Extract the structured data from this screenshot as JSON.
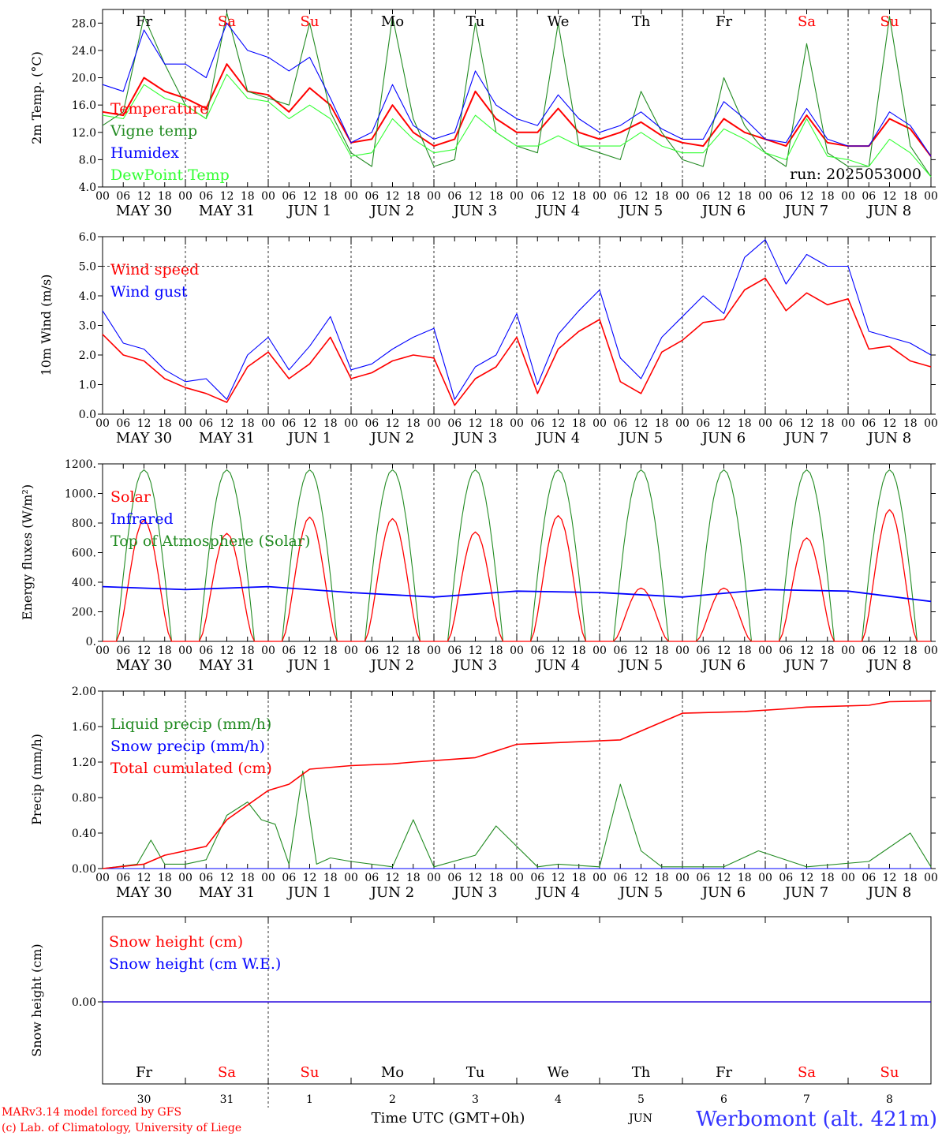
{
  "run_label": "run: 2025053000",
  "days": [
    "Fr",
    "Sa",
    "Su",
    "Mo",
    "Tu",
    "We",
    "Th",
    "Fr",
    "Sa",
    "Su"
  ],
  "weekend_days": [
    1,
    2,
    8,
    9
  ],
  "dates": [
    "MAY 30",
    "MAY 31",
    "JUN  1",
    "JUN  2",
    "JUN  3",
    "JUN  4",
    "JUN  5",
    "JUN  6",
    "JUN  7",
    "JUN  8"
  ],
  "hour_ticks": [
    "00",
    "06",
    "12",
    "18"
  ],
  "last_hour_tick": "00",
  "colors": {
    "red": "#ff0000",
    "green": "#228b22",
    "blue": "#0000ff",
    "light_green": "#33ff33",
    "grid": "#000000"
  },
  "panels": {
    "temp": {
      "ylabel": "2m Temp. (°C)",
      "yticks": [
        "4.0",
        "8.0",
        "12.0",
        "16.0",
        "20.0",
        "24.0",
        "28.0"
      ],
      "ylim": [
        4,
        30
      ],
      "legend": [
        "Temperature",
        "Vigne temp",
        "Humidex",
        "DewPoint Temp"
      ]
    },
    "wind": {
      "ylabel": "10m Wind (m/s)",
      "yticks": [
        "0.0",
        "1.0",
        "2.0",
        "3.0",
        "4.0",
        "5.0",
        "6.0"
      ],
      "ylim": [
        0,
        6
      ],
      "legend": [
        "Wind speed",
        "Wind gust"
      ]
    },
    "energy": {
      "ylabel": "Energy fluxes (W/m²)",
      "yticks": [
        "0.",
        "200.",
        "400.",
        "600.",
        "800.",
        "1000.",
        "1200."
      ],
      "ylim": [
        0,
        1200
      ],
      "legend": [
        "Solar",
        "Infrared",
        "Top of Atmosphere (Solar)"
      ]
    },
    "precip": {
      "ylabel": "Precip (mm/h)",
      "yticks": [
        "0.00",
        "0.40",
        "0.80",
        "1.20",
        "1.60",
        "2.00"
      ],
      "ylim": [
        0,
        2
      ],
      "legend": [
        "Liquid precip (mm/h)",
        "Snow precip (mm/h)",
        "Total cumulated (cm)"
      ]
    },
    "snow": {
      "ylabel": "Snow height (cm)",
      "ytick": "0.00",
      "legend": [
        "Snow height (cm)",
        "Snow height (cm W.E.)"
      ]
    }
  },
  "bottom_axis": {
    "day_numbers": [
      "30",
      "31",
      "1",
      "2",
      "3",
      "4",
      "5",
      "6",
      "7",
      "8"
    ],
    "month": "JUN",
    "xlabel": "Time UTC (GMT+0h)"
  },
  "footer": {
    "model": "MARv3.14 model forced by GFS",
    "credit": "(c) Lab. of Climatology, University of Liege",
    "station": "Werbomont (alt. 421m)"
  },
  "chart_data": [
    {
      "type": "line",
      "x_unit": "hours since 2025-05-30 00 UTC",
      "series": [
        {
          "name": "Temperature",
          "color": "#ff0000",
          "x": [
            0,
            6,
            12,
            18,
            24,
            30,
            36,
            42,
            48,
            54,
            60,
            66,
            72,
            78,
            84,
            90,
            96,
            102,
            108,
            114,
            120,
            126,
            132,
            138,
            144,
            150,
            156,
            162,
            168,
            174,
            180,
            186,
            192,
            198,
            204,
            210,
            216,
            222,
            228,
            234,
            240
          ],
          "y": [
            15,
            14.5,
            20,
            18,
            17,
            15.5,
            22,
            18,
            17.5,
            15,
            18.5,
            16,
            10.5,
            11,
            16,
            12,
            10,
            11,
            18,
            14,
            12,
            12,
            15.5,
            12,
            11,
            12,
            13.5,
            11.5,
            10.5,
            10,
            14,
            12,
            11,
            10,
            14.5,
            10.5,
            10,
            10,
            14,
            12.5,
            8.5
          ]
        },
        {
          "name": "Vigne temp",
          "color": "#228b22",
          "x": [
            0,
            6,
            12,
            18,
            24,
            30,
            36,
            42,
            48,
            54,
            60,
            66,
            72,
            78,
            84,
            90,
            96,
            102,
            108,
            114,
            120,
            126,
            132,
            138,
            144,
            150,
            156,
            162,
            168,
            174,
            180,
            186,
            192,
            198,
            204,
            210,
            216,
            222,
            228,
            234,
            240
          ],
          "y": [
            13,
            15,
            29,
            22,
            16,
            14,
            29.5,
            18,
            17,
            16,
            28,
            15,
            9,
            7,
            29,
            14,
            7,
            8,
            28,
            12,
            10,
            9,
            28,
            10,
            9,
            8,
            18,
            12,
            8,
            7,
            20,
            13,
            9,
            7,
            25,
            9,
            7,
            7,
            29,
            10,
            5.5
          ]
        },
        {
          "name": "Humidex",
          "color": "#0000ff",
          "x": [
            0,
            6,
            12,
            18,
            24,
            30,
            36,
            42,
            48,
            54,
            60,
            66,
            72,
            78,
            84,
            90,
            96,
            102,
            108,
            114,
            120,
            126,
            132,
            138,
            144,
            150,
            156,
            162,
            168,
            174,
            180,
            186,
            192,
            198,
            204,
            210,
            216,
            222,
            228,
            234,
            240
          ],
          "y": [
            19,
            18,
            27,
            22,
            22,
            20,
            28,
            24,
            23,
            21,
            23,
            17,
            10.5,
            12,
            19,
            13,
            11,
            12,
            21,
            16,
            14,
            13,
            17.5,
            14,
            12,
            13,
            15,
            12.5,
            11,
            11,
            16.5,
            14,
            11,
            10.5,
            15.5,
            11,
            10,
            10,
            15,
            13,
            8.5
          ]
        },
        {
          "name": "DewPoint Temp",
          "color": "#33ff33",
          "x": [
            0,
            6,
            12,
            18,
            24,
            30,
            36,
            42,
            48,
            54,
            60,
            66,
            72,
            78,
            84,
            90,
            96,
            102,
            108,
            114,
            120,
            126,
            132,
            138,
            144,
            150,
            156,
            162,
            168,
            174,
            180,
            186,
            192,
            198,
            204,
            210,
            216,
            222,
            228,
            234,
            240
          ],
          "y": [
            14.5,
            14,
            19,
            17,
            16,
            14,
            20.5,
            17,
            16.5,
            14,
            16,
            14,
            8.5,
            9,
            14,
            11,
            9,
            9.5,
            14.5,
            12,
            10,
            10,
            11.5,
            10,
            10,
            10,
            12,
            10,
            9,
            9,
            12.5,
            11,
            9,
            8,
            14,
            8.5,
            8,
            7,
            11,
            9,
            5.5
          ]
        }
      ],
      "ylim": [
        4,
        30
      ]
    },
    {
      "type": "line",
      "x_unit": "hours since 2025-05-30 00 UTC",
      "series": [
        {
          "name": "Wind speed",
          "color": "#ff0000",
          "x": [
            0,
            6,
            12,
            18,
            24,
            30,
            36,
            42,
            48,
            54,
            60,
            66,
            72,
            78,
            84,
            90,
            96,
            102,
            108,
            114,
            120,
            126,
            132,
            138,
            144,
            150,
            156,
            162,
            168,
            174,
            180,
            186,
            192,
            198,
            204,
            210,
            216,
            222,
            228,
            234,
            240
          ],
          "y": [
            2.7,
            2,
            1.8,
            1.2,
            0.9,
            0.7,
            0.4,
            1.6,
            2.1,
            1.2,
            1.7,
            2.6,
            1.2,
            1.4,
            1.8,
            2,
            1.9,
            0.3,
            1.2,
            1.6,
            2.6,
            0.7,
            2.2,
            2.8,
            3.2,
            1.1,
            0.7,
            2.1,
            2.5,
            3.1,
            3.2,
            4.2,
            4.6,
            3.5,
            4.1,
            3.7,
            3.9,
            2.2,
            2.3,
            1.8,
            1.6
          ]
        },
        {
          "name": "Wind gust",
          "color": "#0000ff",
          "x": [
            0,
            6,
            12,
            18,
            24,
            30,
            36,
            42,
            48,
            54,
            60,
            66,
            72,
            78,
            84,
            90,
            96,
            102,
            108,
            114,
            120,
            126,
            132,
            138,
            144,
            150,
            156,
            162,
            168,
            174,
            180,
            186,
            192,
            198,
            204,
            210,
            216,
            222,
            228,
            234,
            240
          ],
          "y": [
            3.5,
            2.4,
            2.2,
            1.5,
            1.1,
            1.2,
            0.5,
            2,
            2.6,
            1.5,
            2.3,
            3.3,
            1.5,
            1.7,
            2.2,
            2.6,
            2.9,
            0.5,
            1.6,
            2,
            3.4,
            1,
            2.7,
            3.5,
            4.2,
            1.9,
            1.2,
            2.6,
            3.3,
            4,
            3.4,
            5.3,
            5.9,
            4.4,
            5.4,
            5,
            5,
            2.8,
            2.6,
            2.4,
            2
          ]
        }
      ],
      "ylim": [
        0,
        6
      ],
      "reference_line": 5
    },
    {
      "type": "line",
      "x_unit": "hours since 2025-05-30 00 UTC",
      "series": [
        {
          "name": "Solar",
          "color": "#ff0000",
          "daily_peak_values": [
            820,
            730,
            840,
            830,
            740,
            850,
            360,
            360,
            700,
            890
          ]
        },
        {
          "name": "Infrared",
          "color": "#0000ff",
          "x": [
            0,
            24,
            48,
            72,
            96,
            120,
            144,
            168,
            192,
            216,
            240
          ],
          "y": [
            370,
            350,
            370,
            330,
            300,
            340,
            330,
            300,
            350,
            340,
            270
          ]
        },
        {
          "name": "Top of Atmosphere (Solar)",
          "color": "#228b22",
          "daily_peak_values": [
            1160,
            1160,
            1160,
            1160,
            1160,
            1160,
            1160,
            1160,
            1160,
            1160
          ]
        }
      ],
      "ylim": [
        0,
        1200
      ]
    },
    {
      "type": "line",
      "x_unit": "hours since 2025-05-30 00 UTC",
      "series": [
        {
          "name": "Liquid precip (mm/h)",
          "color": "#228b22",
          "x": [
            0,
            10,
            14,
            18,
            24,
            30,
            36,
            42,
            46,
            50,
            54,
            58,
            62,
            66,
            72,
            84,
            90,
            96,
            108,
            114,
            126,
            132,
            144,
            150,
            156,
            162,
            168,
            180,
            190,
            204,
            222,
            234,
            240
          ],
          "y": [
            0,
            0.05,
            0.32,
            0.05,
            0.05,
            0.1,
            0.6,
            0.75,
            0.55,
            0.5,
            0.05,
            1.1,
            0.05,
            0.12,
            0.08,
            0.02,
            0.55,
            0.02,
            0.15,
            0.48,
            0.02,
            0.05,
            0.02,
            0.95,
            0.2,
            0.02,
            0.02,
            0.02,
            0.2,
            0.02,
            0.08,
            0.4,
            0.02
          ]
        },
        {
          "name": "Snow precip (mm/h)",
          "color": "#0000ff",
          "x": [
            0,
            240
          ],
          "y": [
            0,
            0
          ]
        },
        {
          "name": "Total cumulated (cm)",
          "color": "#ff0000",
          "x": [
            0,
            12,
            18,
            30,
            36,
            48,
            54,
            60,
            72,
            84,
            90,
            108,
            120,
            132,
            150,
            156,
            168,
            186,
            198,
            204,
            222,
            228,
            240
          ],
          "y": [
            0,
            0.05,
            0.15,
            0.25,
            0.55,
            0.88,
            0.95,
            1.12,
            1.16,
            1.18,
            1.2,
            1.25,
            1.4,
            1.42,
            1.45,
            1.55,
            1.75,
            1.77,
            1.8,
            1.82,
            1.84,
            1.88,
            1.89
          ]
        }
      ],
      "ylim": [
        0,
        2
      ]
    },
    {
      "type": "line",
      "x_unit": "hours since 2025-05-30 00 UTC",
      "series": [
        {
          "name": "Snow height (cm)",
          "color": "#ff0000",
          "x": [
            0,
            240
          ],
          "y": [
            0,
            0
          ]
        },
        {
          "name": "Snow height (cm W.E.)",
          "color": "#0000ff",
          "x": [
            0,
            240
          ],
          "y": [
            0,
            0
          ]
        }
      ]
    }
  ]
}
